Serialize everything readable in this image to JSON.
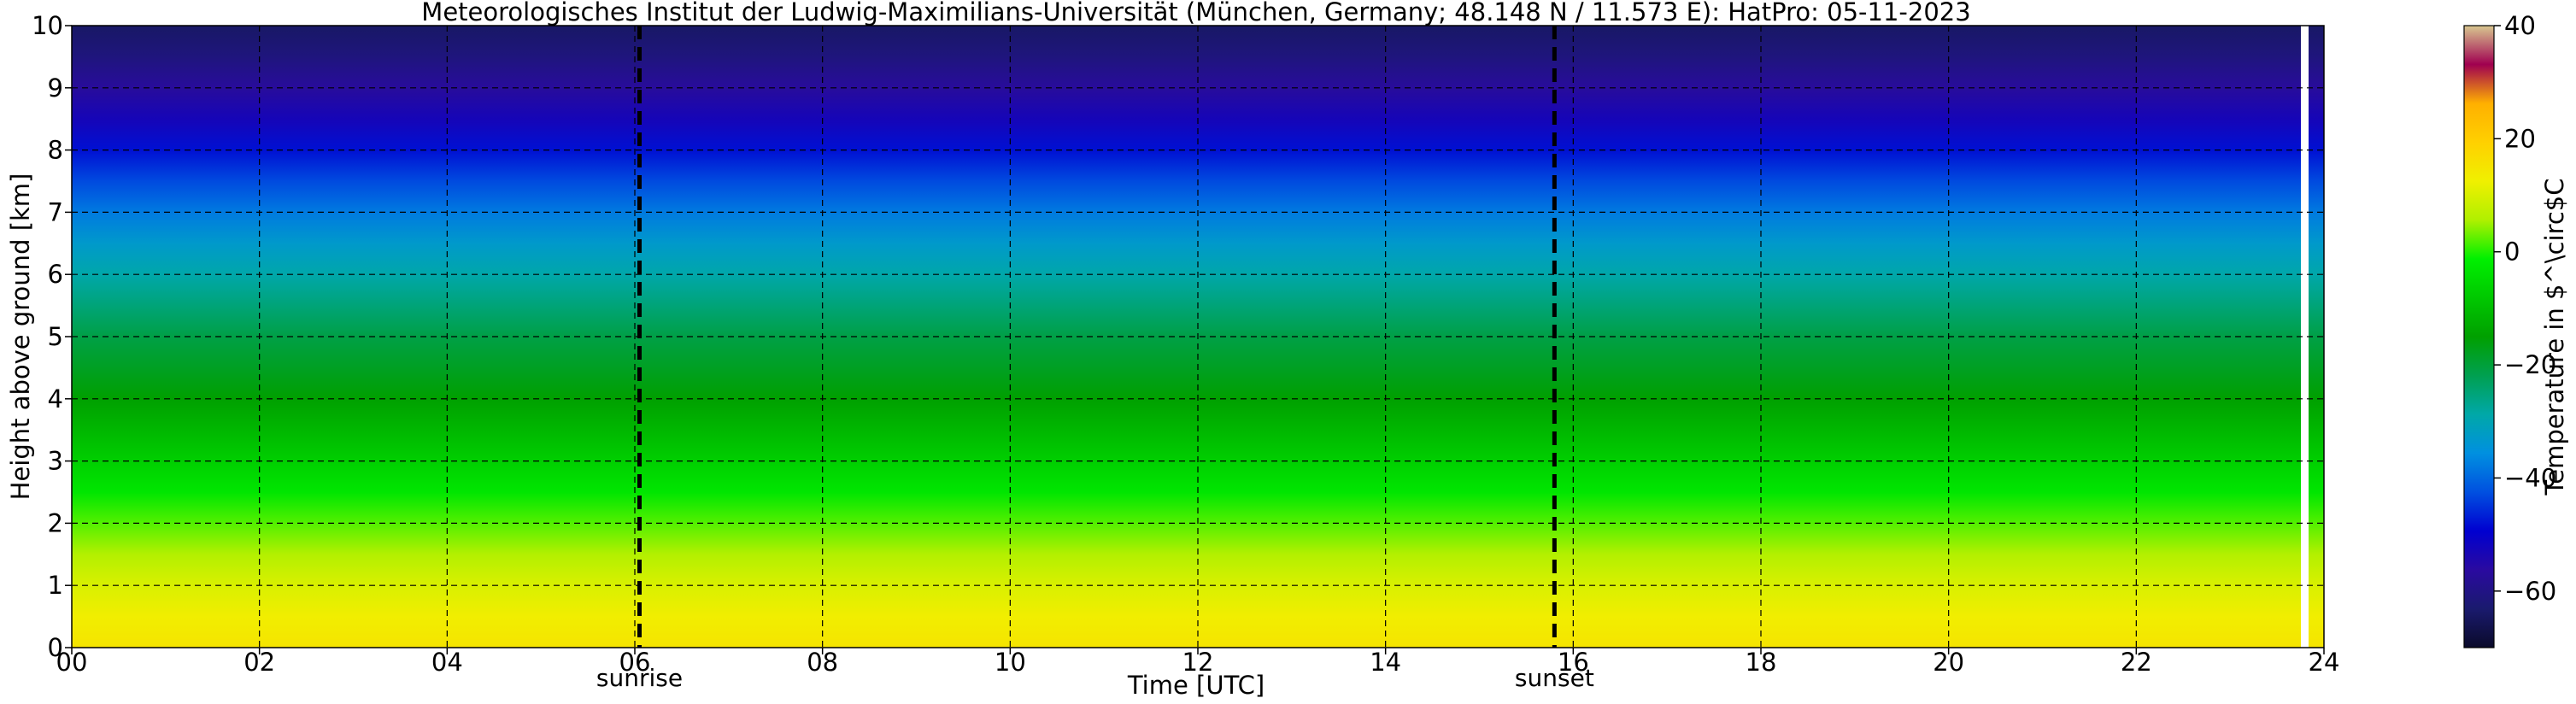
{
  "chart_data": {
    "type": "heatmap",
    "title": "Meteorologisches Institut der Ludwig-Maximilians-Universität (München, Germany; 48.148 N / 11.573 E):    HatPro: 05-11-2023",
    "xlabel": "Time [UTC]",
    "ylabel": "Height above ground [km]",
    "xlim": [
      0,
      24
    ],
    "ylim": [
      0,
      10
    ],
    "x_ticks": [
      "00",
      "02",
      "04",
      "06",
      "08",
      "10",
      "12",
      "14",
      "16",
      "18",
      "20",
      "22",
      "24"
    ],
    "y_ticks": [
      "0",
      "1",
      "2",
      "3",
      "4",
      "5",
      "6",
      "7",
      "8",
      "9",
      "10"
    ],
    "grid": true,
    "colorbar": {
      "label": "Temperature in $^\\circ$C",
      "range": [
        -70,
        40
      ],
      "ticks": [
        "40",
        "20",
        "0",
        "−20",
        "−40",
        "−60"
      ]
    },
    "markers": [
      {
        "label": "sunrise",
        "x": 6.05
      },
      {
        "label": "sunset",
        "x": 15.8
      }
    ],
    "temperature_profile": {
      "height_km": [
        0,
        0.5,
        1.0,
        1.5,
        2.0,
        2.5,
        3.0,
        3.5,
        4.0,
        4.5,
        5.0,
        5.5,
        6.0,
        6.5,
        7.0,
        7.5,
        8.0,
        8.5,
        9.0,
        9.5,
        10.0
      ],
      "temp_c": [
        15,
        13,
        10,
        6,
        2,
        -3,
        -7,
        -11,
        -15,
        -18,
        -21,
        -25,
        -29,
        -33,
        -38,
        -43,
        -48,
        -53,
        -57,
        -61,
        -64
      ]
    },
    "colors": {
      "scale": [
        "#0a0a2a",
        "#1a1a6e",
        "#2a0aa0",
        "#0000d0",
        "#0050e0",
        "#0090e0",
        "#00a8a8",
        "#00a050",
        "#00a000",
        "#00c800",
        "#00f000",
        "#b0f000",
        "#f0f000",
        "#ffd000",
        "#ffb000",
        "#a00050",
        "#d8c890"
      ]
    }
  }
}
